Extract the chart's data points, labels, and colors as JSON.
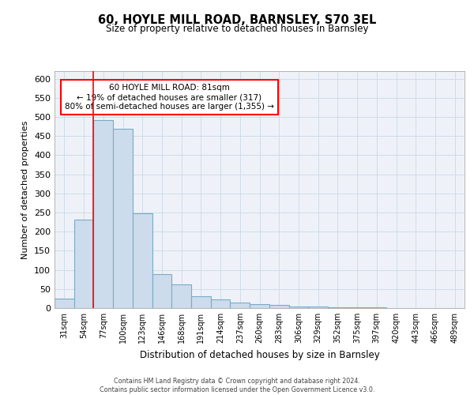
{
  "title1": "60, HOYLE MILL ROAD, BARNSLEY, S70 3EL",
  "title2": "Size of property relative to detached houses in Barnsley",
  "xlabel": "Distribution of detached houses by size in Barnsley",
  "ylabel": "Number of detached properties",
  "bar_labels": [
    "31sqm",
    "54sqm",
    "77sqm",
    "100sqm",
    "123sqm",
    "146sqm",
    "168sqm",
    "191sqm",
    "214sqm",
    "237sqm",
    "260sqm",
    "283sqm",
    "306sqm",
    "329sqm",
    "352sqm",
    "375sqm",
    "397sqm",
    "420sqm",
    "443sqm",
    "466sqm",
    "489sqm"
  ],
  "bar_heights": [
    25,
    232,
    492,
    470,
    248,
    88,
    62,
    30,
    22,
    14,
    10,
    8,
    5,
    4,
    3,
    2,
    2,
    1,
    1,
    1,
    1
  ],
  "bar_color": "#ccdcec",
  "bar_edge_color": "#7aaac8",
  "grid_color": "#d0dce8",
  "background_color": "#eef2f8",
  "red_line_index": 2,
  "annotation_text": "60 HOYLE MILL ROAD: 81sqm\n← 19% of detached houses are smaller (317)\n80% of semi-detached houses are larger (1,355) →",
  "annotation_box_color": "white",
  "annotation_box_edge_color": "red",
  "footer_text": "Contains HM Land Registry data © Crown copyright and database right 2024.\nContains public sector information licensed under the Open Government Licence v3.0.",
  "ylim": [
    0,
    620
  ],
  "yticks": [
    0,
    50,
    100,
    150,
    200,
    250,
    300,
    350,
    400,
    450,
    500,
    550,
    600
  ]
}
